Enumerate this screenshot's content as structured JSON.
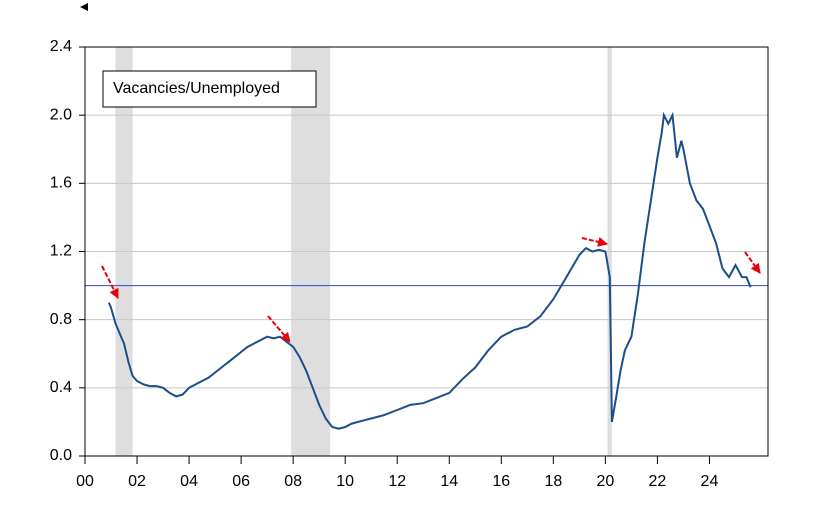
{
  "chart_data": {
    "type": "line",
    "series": [
      {
        "name": "Vacancies/Unemployed",
        "color": "#1b4f8a",
        "x": [
          2000.92,
          2001.0,
          2001.17,
          2001.33,
          2001.5,
          2001.67,
          2001.83,
          2002.0,
          2002.25,
          2002.5,
          2002.75,
          2003.0,
          2003.25,
          2003.5,
          2003.75,
          2004.0,
          2004.25,
          2004.5,
          2004.75,
          2005.0,
          2005.25,
          2005.5,
          2005.75,
          2006.0,
          2006.25,
          2006.5,
          2006.75,
          2007.0,
          2007.25,
          2007.5,
          2007.75,
          2008.0,
          2008.25,
          2008.5,
          2008.75,
          2009.0,
          2009.25,
          2009.5,
          2009.75,
          2010.0,
          2010.25,
          2010.5,
          2010.75,
          2011.0,
          2011.5,
          2012.0,
          2012.5,
          2013.0,
          2013.5,
          2014.0,
          2014.5,
          2015.0,
          2015.5,
          2016.0,
          2016.5,
          2017.0,
          2017.5,
          2018.0,
          2018.5,
          2019.0,
          2019.25,
          2019.5,
          2019.75,
          2020.0,
          2020.17,
          2020.25,
          2020.42,
          2020.58,
          2020.75,
          2021.0,
          2021.25,
          2021.5,
          2021.75,
          2022.0,
          2022.17,
          2022.25,
          2022.42,
          2022.58,
          2022.75,
          2022.92,
          2023.0,
          2023.25,
          2023.5,
          2023.75,
          2024.0,
          2024.25,
          2024.5,
          2024.75,
          2025.0,
          2025.25,
          2025.42,
          2025.58
        ],
        "values": [
          0.9,
          0.87,
          0.78,
          0.72,
          0.66,
          0.55,
          0.47,
          0.44,
          0.42,
          0.41,
          0.41,
          0.4,
          0.37,
          0.35,
          0.36,
          0.4,
          0.42,
          0.44,
          0.46,
          0.49,
          0.52,
          0.55,
          0.58,
          0.61,
          0.64,
          0.66,
          0.68,
          0.7,
          0.69,
          0.7,
          0.67,
          0.64,
          0.58,
          0.5,
          0.4,
          0.3,
          0.22,
          0.17,
          0.16,
          0.17,
          0.19,
          0.2,
          0.21,
          0.22,
          0.24,
          0.27,
          0.3,
          0.31,
          0.34,
          0.37,
          0.45,
          0.52,
          0.62,
          0.7,
          0.74,
          0.76,
          0.82,
          0.92,
          1.05,
          1.18,
          1.22,
          1.2,
          1.21,
          1.2,
          1.05,
          0.2,
          0.35,
          0.5,
          0.62,
          0.7,
          0.95,
          1.25,
          1.5,
          1.75,
          1.9,
          2.0,
          1.95,
          2.0,
          1.75,
          1.85,
          1.8,
          1.6,
          1.5,
          1.45,
          1.35,
          1.25,
          1.1,
          1.05,
          1.12,
          1.05,
          1.05,
          0.99
        ]
      }
    ],
    "reference_line": 1.0,
    "recessions": [
      [
        2001.17,
        2001.83
      ],
      [
        2007.92,
        2009.42
      ],
      [
        2020.08,
        2020.25
      ]
    ],
    "xlim": [
      2000,
      2026.25
    ],
    "xticks": [
      {
        "value": 2000,
        "label": "00"
      },
      {
        "value": 2002,
        "label": "02"
      },
      {
        "value": 2004,
        "label": "04"
      },
      {
        "value": 2006,
        "label": "06"
      },
      {
        "value": 2008,
        "label": "08"
      },
      {
        "value": 2010,
        "label": "10"
      },
      {
        "value": 2012,
        "label": "12"
      },
      {
        "value": 2014,
        "label": "14"
      },
      {
        "value": 2016,
        "label": "16"
      },
      {
        "value": 2018,
        "label": "18"
      },
      {
        "value": 2020,
        "label": "20"
      },
      {
        "value": 2022,
        "label": "22"
      },
      {
        "value": 2024,
        "label": "24"
      }
    ],
    "ylim": [
      0,
      2.4
    ],
    "yticks": [
      {
        "value": 0,
        "label": "0.0"
      },
      0.4,
      0.8,
      1.2,
      1.6,
      {
        "value": 2,
        "label": "2.0"
      },
      2.4
    ],
    "grid": true
  }
}
